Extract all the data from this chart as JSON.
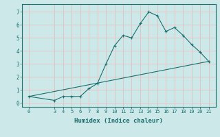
{
  "title": "",
  "xlabel": "Humidex (Indice chaleur)",
  "background_color": "#cce8e8",
  "grid_color": "#e8b8b8",
  "line_color": "#1a6e6e",
  "line1_x": [
    0,
    3,
    4,
    5,
    6,
    7,
    8,
    9,
    10,
    11,
    12,
    13,
    14,
    15,
    16,
    17,
    18,
    19,
    20,
    21
  ],
  "line1_y": [
    0.5,
    0.2,
    0.5,
    0.5,
    0.5,
    1.1,
    1.5,
    3.0,
    4.4,
    5.2,
    5.0,
    6.1,
    7.0,
    6.7,
    5.5,
    5.8,
    5.2,
    4.5,
    3.9,
    3.2
  ],
  "line2_x": [
    0,
    21
  ],
  "line2_y": [
    0.5,
    3.2
  ],
  "ylim": [
    -0.3,
    7.6
  ],
  "xlim": [
    -0.8,
    21.8
  ],
  "yticks": [
    0,
    1,
    2,
    3,
    4,
    5,
    6,
    7
  ],
  "xticks": [
    0,
    3,
    4,
    5,
    6,
    7,
    8,
    9,
    10,
    11,
    12,
    13,
    14,
    15,
    16,
    17,
    18,
    19,
    20,
    21
  ],
  "figsize": [
    3.2,
    2.0
  ],
  "dpi": 100
}
